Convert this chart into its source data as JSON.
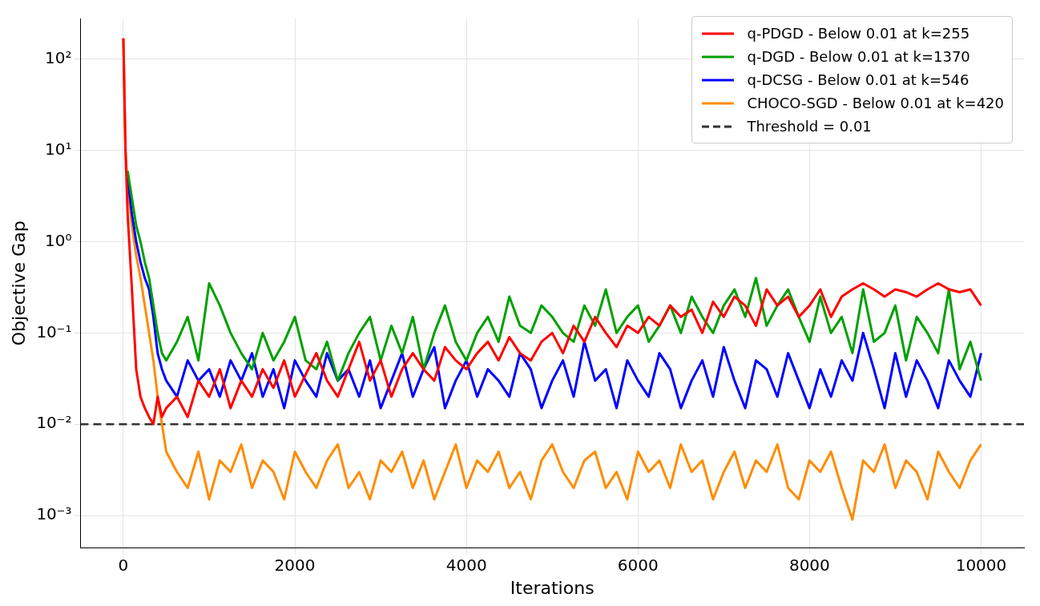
{
  "chart_data": {
    "type": "line",
    "xlabel": "Iterations",
    "ylabel": "Objective Gap",
    "log": "y",
    "grid": true,
    "legend": "top right",
    "xlim": [
      -500,
      10500
    ],
    "xticks": [
      0,
      2000,
      4000,
      6000,
      8000,
      10000
    ],
    "ylim": [
      0.00044,
      280
    ],
    "yticks": [
      {
        "value": 0.001,
        "label": "10⁻³"
      },
      {
        "value": 0.01,
        "label": "10⁻²"
      },
      {
        "value": 0.1,
        "label": "10⁻¹"
      },
      {
        "value": 1,
        "label": "10⁰"
      },
      {
        "value": 10,
        "label": "10¹"
      },
      {
        "value": 100,
        "label": "10²"
      }
    ],
    "x": [
      0,
      25,
      50,
      100,
      150,
      200,
      250,
      300,
      350,
      400,
      450,
      500,
      625,
      750,
      875,
      1000,
      1125,
      1250,
      1375,
      1500,
      1625,
      1750,
      1875,
      2000,
      2125,
      2250,
      2375,
      2500,
      2625,
      2750,
      2875,
      3000,
      3125,
      3250,
      3375,
      3500,
      3625,
      3750,
      3875,
      4000,
      4125,
      4250,
      4375,
      4500,
      4625,
      4750,
      4875,
      5000,
      5125,
      5250,
      5375,
      5500,
      5625,
      5750,
      5875,
      6000,
      6125,
      6250,
      6375,
      6500,
      6625,
      6750,
      6875,
      7000,
      7125,
      7250,
      7375,
      7500,
      7625,
      7750,
      7875,
      8000,
      8125,
      8250,
      8375,
      8500,
      8625,
      8750,
      8875,
      9000,
      9125,
      9250,
      9375,
      9500,
      9625,
      9750,
      9875,
      10000
    ],
    "series": [
      {
        "name": "q-PDGD - Below 0.01 at k=255",
        "color": "#ff0000",
        "values": [
          170,
          10,
          2,
          0.3,
          0.04,
          0.02,
          0.015,
          0.012,
          0.01,
          0.02,
          0.012,
          0.015,
          0.02,
          0.012,
          0.03,
          0.02,
          0.04,
          0.015,
          0.03,
          0.02,
          0.04,
          0.025,
          0.05,
          0.02,
          0.035,
          0.06,
          0.03,
          0.02,
          0.04,
          0.08,
          0.03,
          0.05,
          0.02,
          0.04,
          0.06,
          0.04,
          0.03,
          0.07,
          0.05,
          0.04,
          0.06,
          0.08,
          0.05,
          0.09,
          0.06,
          0.05,
          0.08,
          0.1,
          0.06,
          0.12,
          0.08,
          0.15,
          0.1,
          0.07,
          0.12,
          0.1,
          0.15,
          0.12,
          0.2,
          0.15,
          0.18,
          0.1,
          0.22,
          0.15,
          0.25,
          0.2,
          0.12,
          0.3,
          0.2,
          0.25,
          0.15,
          0.2,
          0.3,
          0.15,
          0.25,
          0.3,
          0.35,
          0.3,
          0.25,
          0.3,
          0.28,
          0.25,
          0.3,
          0.35,
          0.3,
          0.28,
          0.3,
          0.2
        ]
      },
      {
        "name": "q-DGD - Below 0.01 at k=1370",
        "color": "#00a000",
        "values": [
          null,
          null,
          6,
          3,
          1.5,
          1,
          0.6,
          0.4,
          0.2,
          0.1,
          0.06,
          0.05,
          0.08,
          0.15,
          0.05,
          0.35,
          0.2,
          0.1,
          0.06,
          0.04,
          0.1,
          0.05,
          0.08,
          0.15,
          0.05,
          0.04,
          0.08,
          0.03,
          0.06,
          0.1,
          0.15,
          0.05,
          0.12,
          0.06,
          0.15,
          0.04,
          0.1,
          0.2,
          0.08,
          0.05,
          0.1,
          0.15,
          0.08,
          0.25,
          0.12,
          0.1,
          0.2,
          0.15,
          0.1,
          0.08,
          0.2,
          0.12,
          0.3,
          0.1,
          0.15,
          0.2,
          0.08,
          0.12,
          0.2,
          0.1,
          0.25,
          0.15,
          0.1,
          0.2,
          0.3,
          0.15,
          0.4,
          0.12,
          0.2,
          0.3,
          0.15,
          0.08,
          0.25,
          0.1,
          0.15,
          0.06,
          0.3,
          0.08,
          0.1,
          0.2,
          0.05,
          0.15,
          0.1,
          0.06,
          0.3,
          0.04,
          0.08,
          0.03
        ]
      },
      {
        "name": "q-DCSG - Below 0.01 at k=546",
        "color": "#0000ff",
        "values": [
          null,
          null,
          5,
          2,
          1,
          0.6,
          0.4,
          0.3,
          0.15,
          0.06,
          0.04,
          0.03,
          0.02,
          0.05,
          0.03,
          0.04,
          0.02,
          0.05,
          0.03,
          0.06,
          0.02,
          0.04,
          0.015,
          0.05,
          0.03,
          0.02,
          0.06,
          0.03,
          0.04,
          0.02,
          0.05,
          0.015,
          0.03,
          0.06,
          0.02,
          0.04,
          0.07,
          0.015,
          0.03,
          0.05,
          0.02,
          0.04,
          0.03,
          0.02,
          0.06,
          0.04,
          0.015,
          0.03,
          0.05,
          0.02,
          0.08,
          0.03,
          0.04,
          0.015,
          0.05,
          0.03,
          0.02,
          0.06,
          0.04,
          0.015,
          0.03,
          0.05,
          0.02,
          0.07,
          0.03,
          0.015,
          0.05,
          0.04,
          0.02,
          0.06,
          0.03,
          0.015,
          0.04,
          0.02,
          0.05,
          0.03,
          0.1,
          0.04,
          0.015,
          0.06,
          0.02,
          0.05,
          0.03,
          0.015,
          0.05,
          0.03,
          0.02,
          0.06
        ]
      },
      {
        "name": "CHOCO-SGD - Below 0.01 at k=420",
        "color": "#ff8c00",
        "values": [
          170,
          10,
          4,
          1.5,
          0.7,
          0.4,
          0.2,
          0.1,
          0.05,
          0.02,
          0.01,
          0.005,
          0.003,
          0.002,
          0.005,
          0.0015,
          0.004,
          0.003,
          0.006,
          0.002,
          0.004,
          0.003,
          0.0015,
          0.005,
          0.003,
          0.002,
          0.004,
          0.006,
          0.002,
          0.003,
          0.0015,
          0.004,
          0.003,
          0.005,
          0.002,
          0.004,
          0.0015,
          0.003,
          0.006,
          0.002,
          0.004,
          0.003,
          0.005,
          0.002,
          0.003,
          0.0015,
          0.004,
          0.006,
          0.003,
          0.002,
          0.004,
          0.005,
          0.002,
          0.003,
          0.0015,
          0.005,
          0.003,
          0.004,
          0.002,
          0.006,
          0.003,
          0.004,
          0.0015,
          0.003,
          0.005,
          0.002,
          0.004,
          0.003,
          0.006,
          0.002,
          0.0015,
          0.004,
          0.003,
          0.005,
          0.002,
          0.0009,
          0.004,
          0.003,
          0.006,
          0.002,
          0.004,
          0.003,
          0.0015,
          0.005,
          0.003,
          0.002,
          0.004,
          0.006
        ]
      }
    ],
    "ref_lines": [
      {
        "axis": "y",
        "value": 0.01,
        "label": "Threshold = 0.01",
        "color": "#333333",
        "line_style": "dashed"
      }
    ]
  }
}
